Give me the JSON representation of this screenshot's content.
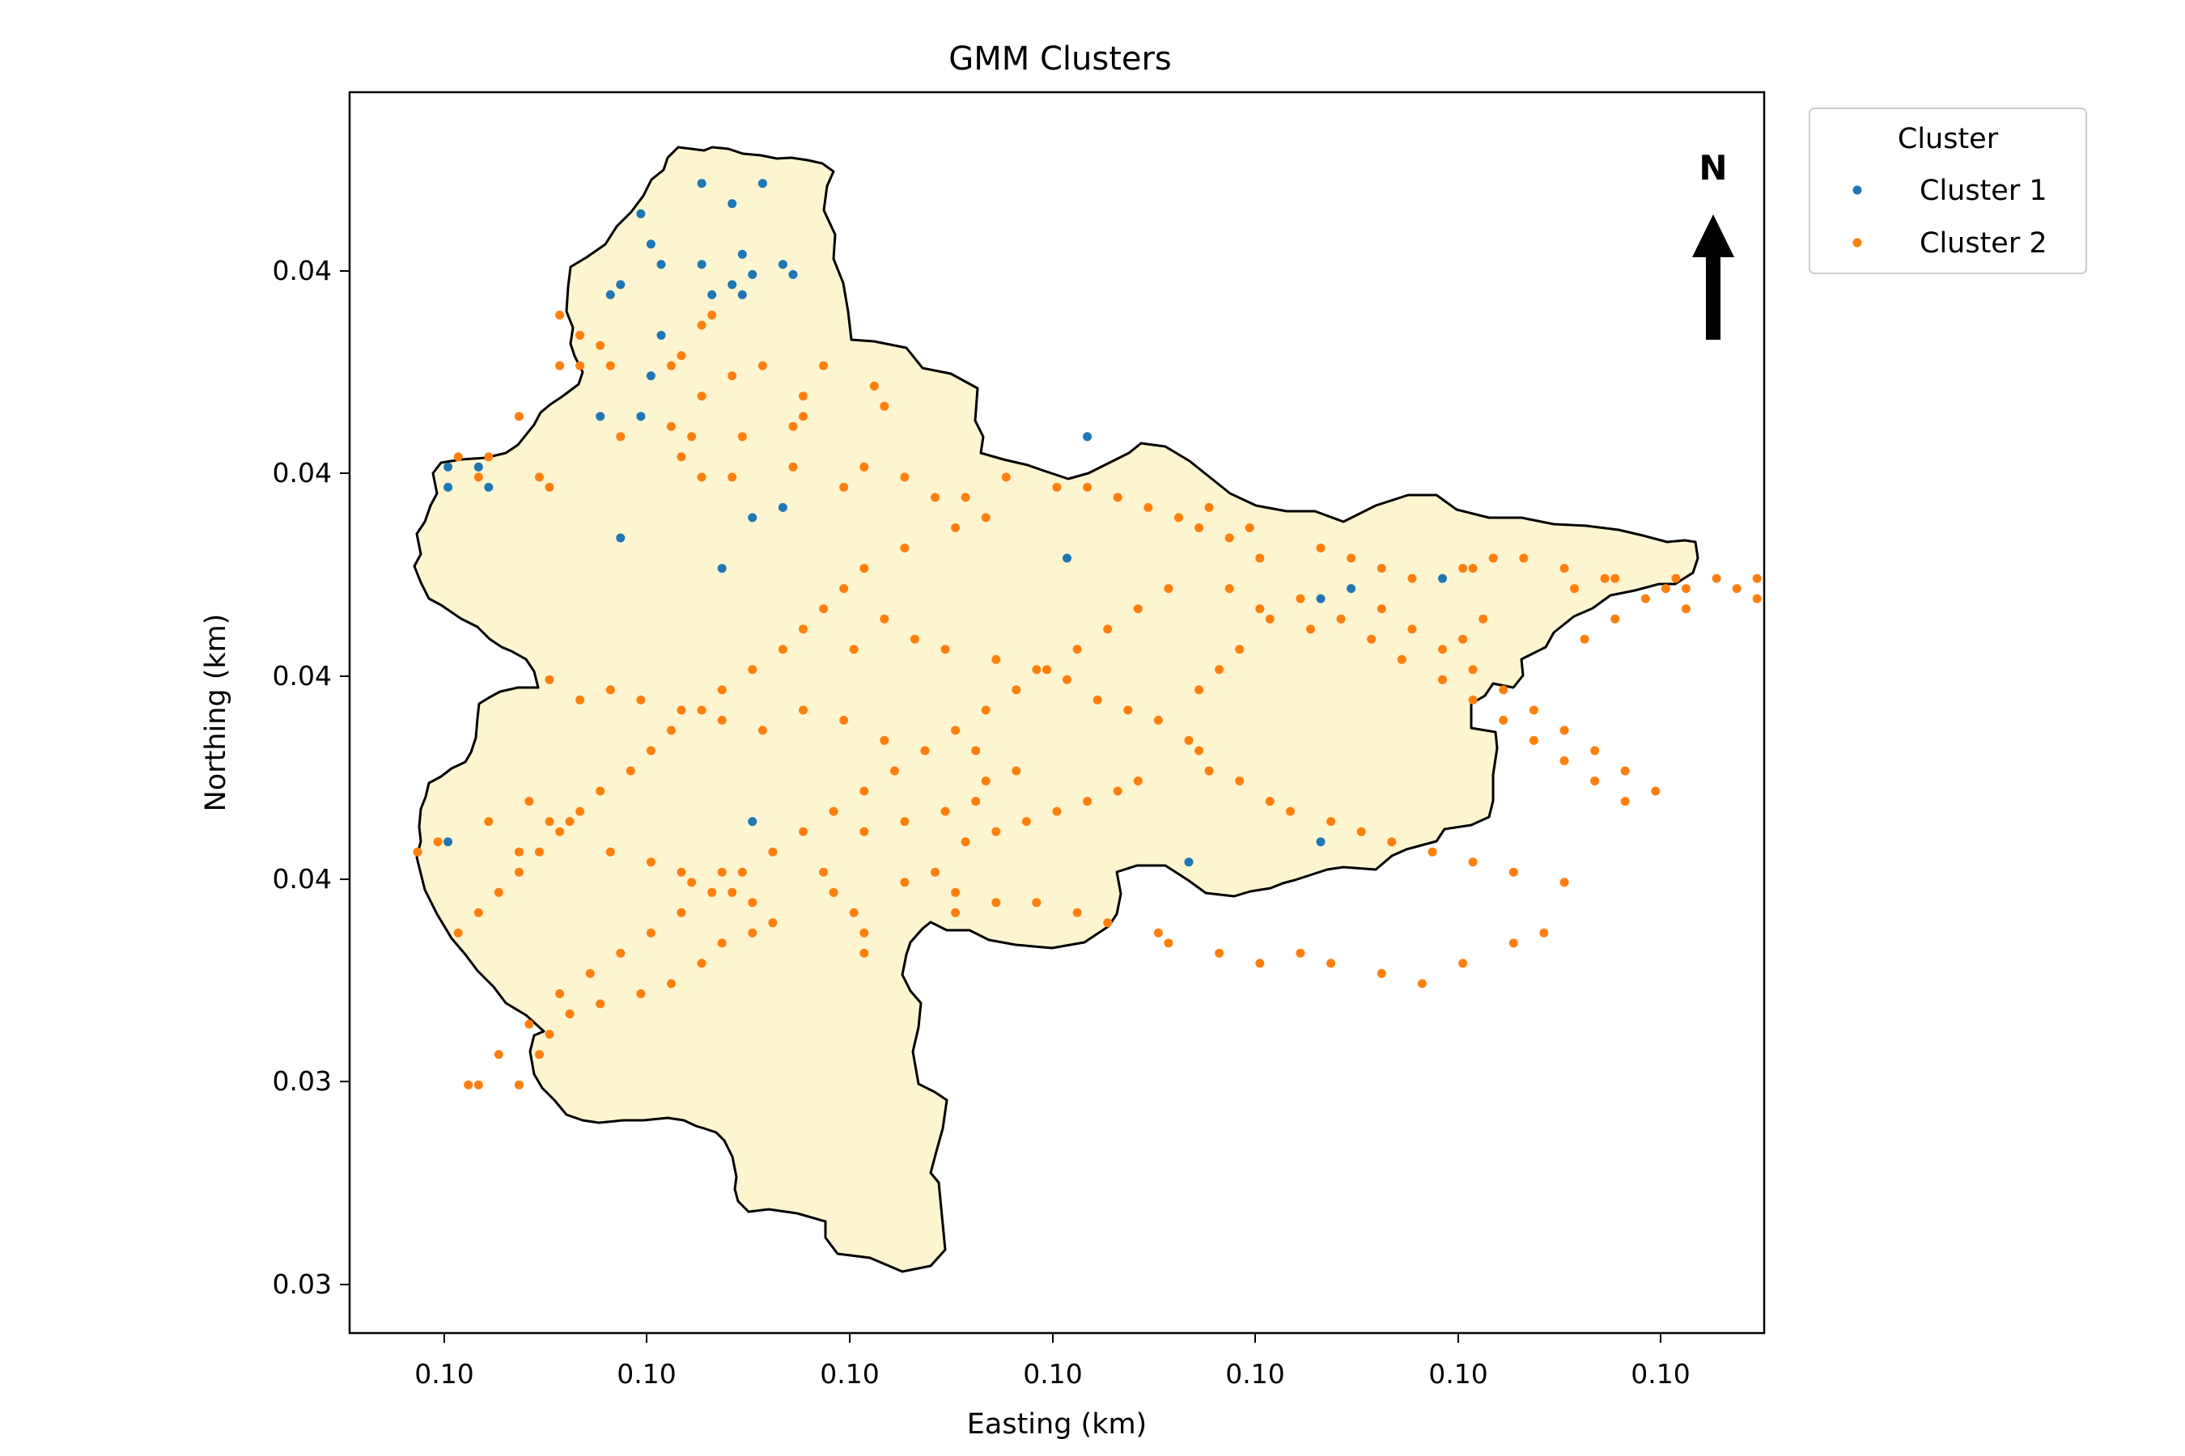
{
  "chart_data": {
    "type": "scatter",
    "title": "GMM Clusters",
    "xlabel": "Easting (km)",
    "ylabel": "Northing (km)",
    "x_tick_labels": [
      "0.10",
      "0.10",
      "0.10",
      "0.10",
      "0.10",
      "0.10",
      "0.10"
    ],
    "y_tick_labels": [
      "0.04",
      "0.04",
      "0.04",
      "0.04",
      "0.03",
      "0.03"
    ],
    "xlim": [
      -0.47,
      13.47
    ],
    "ylim": [
      -0.45,
      11.8
    ],
    "north_arrow_label": "N",
    "legend": {
      "title": "Cluster",
      "position": "outside-top-right"
    },
    "basin_fill": "#fdf5d0",
    "series": [
      {
        "name": "Cluster 1",
        "color": "#1f77b4",
        "points": [
          [
            2.4,
            10.6
          ],
          [
            3.0,
            10.9
          ],
          [
            3.3,
            10.7
          ],
          [
            3.6,
            10.9
          ],
          [
            2.5,
            10.3
          ],
          [
            2.6,
            10.1
          ],
          [
            3.0,
            10.1
          ],
          [
            3.4,
            10.2
          ],
          [
            3.8,
            10.1
          ],
          [
            3.5,
            10.0
          ],
          [
            3.9,
            10.0
          ],
          [
            2.2,
            9.9
          ],
          [
            2.1,
            9.8
          ],
          [
            3.1,
            9.8
          ],
          [
            3.4,
            9.8
          ],
          [
            2.6,
            9.4
          ],
          [
            3.3,
            9.9
          ],
          [
            2.5,
            9.0
          ],
          [
            2.4,
            8.6
          ],
          [
            2.0,
            8.6
          ],
          [
            0.5,
            8.1
          ],
          [
            0.8,
            8.1
          ],
          [
            0.5,
            7.9
          ],
          [
            0.9,
            7.9
          ],
          [
            3.5,
            7.6
          ],
          [
            3.8,
            7.7
          ],
          [
            2.2,
            7.4
          ],
          [
            3.2,
            7.1
          ],
          [
            6.6,
            7.2
          ],
          [
            6.8,
            8.4
          ],
          [
            10.3,
            7.0
          ],
          [
            9.4,
            6.9
          ],
          [
            9.1,
            6.8
          ],
          [
            3.5,
            4.6
          ],
          [
            9.1,
            4.4
          ],
          [
            7.8,
            4.2
          ],
          [
            0.5,
            4.4
          ]
        ]
      },
      {
        "name": "Cluster 2",
        "color": "#ff7f0e",
        "points": [
          [
            1.6,
            9.6
          ],
          [
            1.8,
            9.4
          ],
          [
            2.0,
            9.3
          ],
          [
            3.1,
            9.6
          ],
          [
            3.0,
            9.5
          ],
          [
            2.8,
            9.2
          ],
          [
            1.6,
            9.1
          ],
          [
            1.8,
            9.1
          ],
          [
            2.1,
            9.1
          ],
          [
            2.7,
            9.1
          ],
          [
            3.3,
            9.0
          ],
          [
            3.6,
            9.1
          ],
          [
            3.0,
            8.8
          ],
          [
            4.2,
            9.1
          ],
          [
            4.7,
            8.9
          ],
          [
            4.8,
            8.7
          ],
          [
            4.0,
            8.8
          ],
          [
            4.0,
            8.6
          ],
          [
            3.9,
            8.5
          ],
          [
            3.4,
            8.4
          ],
          [
            2.7,
            8.5
          ],
          [
            2.9,
            8.4
          ],
          [
            2.2,
            8.4
          ],
          [
            1.2,
            8.6
          ],
          [
            0.9,
            8.2
          ],
          [
            0.6,
            8.2
          ],
          [
            0.8,
            8.0
          ],
          [
            1.4,
            8.0
          ],
          [
            1.5,
            7.9
          ],
          [
            2.8,
            8.2
          ],
          [
            3.0,
            8.0
          ],
          [
            3.3,
            8.0
          ],
          [
            3.9,
            8.1
          ],
          [
            4.4,
            7.9
          ],
          [
            4.6,
            8.1
          ],
          [
            5.0,
            8.0
          ],
          [
            5.3,
            7.8
          ],
          [
            5.6,
            7.8
          ],
          [
            6.0,
            8.0
          ],
          [
            6.5,
            7.9
          ],
          [
            6.8,
            7.9
          ],
          [
            7.1,
            7.8
          ],
          [
            7.4,
            7.7
          ],
          [
            7.7,
            7.6
          ],
          [
            7.9,
            7.5
          ],
          [
            8.2,
            7.4
          ],
          [
            8.5,
            7.2
          ],
          [
            9.1,
            7.3
          ],
          [
            9.4,
            7.2
          ],
          [
            9.7,
            7.1
          ],
          [
            10.0,
            7.0
          ],
          [
            10.5,
            7.1
          ],
          [
            10.8,
            7.2
          ],
          [
            11.1,
            7.2
          ],
          [
            11.5,
            7.1
          ],
          [
            11.9,
            7.0
          ],
          [
            11.6,
            6.9
          ],
          [
            12.0,
            7.0
          ],
          [
            12.5,
            6.9
          ],
          [
            12.7,
            6.9
          ],
          [
            12.7,
            6.7
          ],
          [
            5.8,
            7.6
          ],
          [
            5.5,
            7.5
          ],
          [
            5.0,
            7.3
          ],
          [
            4.6,
            7.1
          ],
          [
            4.4,
            6.9
          ],
          [
            4.2,
            6.7
          ],
          [
            4.0,
            6.5
          ],
          [
            3.8,
            6.3
          ],
          [
            3.5,
            6.1
          ],
          [
            3.2,
            5.9
          ],
          [
            3.0,
            5.7
          ],
          [
            2.7,
            5.5
          ],
          [
            2.5,
            5.3
          ],
          [
            2.3,
            5.1
          ],
          [
            2.0,
            4.9
          ],
          [
            1.8,
            4.7
          ],
          [
            1.6,
            4.5
          ],
          [
            1.4,
            4.3
          ],
          [
            1.2,
            4.1
          ],
          [
            1.0,
            3.9
          ],
          [
            0.8,
            3.7
          ],
          [
            0.6,
            3.5
          ],
          [
            1.7,
            4.6
          ],
          [
            1.2,
            4.3
          ],
          [
            0.4,
            4.4
          ],
          [
            0.2,
            4.3
          ],
          [
            0.9,
            4.6
          ],
          [
            1.3,
            4.8
          ],
          [
            1.5,
            4.6
          ],
          [
            2.1,
            4.3
          ],
          [
            2.5,
            4.2
          ],
          [
            2.8,
            4.1
          ],
          [
            2.9,
            4.0
          ],
          [
            3.2,
            4.1
          ],
          [
            3.3,
            3.9
          ],
          [
            3.5,
            3.8
          ],
          [
            3.7,
            3.6
          ],
          [
            3.5,
            3.5
          ],
          [
            3.2,
            3.4
          ],
          [
            3.0,
            3.2
          ],
          [
            2.7,
            3.0
          ],
          [
            2.4,
            2.9
          ],
          [
            2.0,
            2.8
          ],
          [
            1.7,
            2.7
          ],
          [
            1.5,
            2.5
          ],
          [
            1.4,
            2.3
          ],
          [
            1.2,
            2.0
          ],
          [
            0.8,
            2.0
          ],
          [
            4.2,
            4.1
          ],
          [
            4.3,
            3.9
          ],
          [
            4.5,
            3.7
          ],
          [
            4.6,
            3.5
          ],
          [
            4.6,
            3.3
          ],
          [
            5.0,
            4.0
          ],
          [
            5.3,
            4.1
          ],
          [
            5.5,
            3.9
          ],
          [
            5.5,
            3.7
          ],
          [
            5.9,
            3.8
          ],
          [
            6.3,
            3.8
          ],
          [
            6.7,
            3.7
          ],
          [
            7.0,
            3.6
          ],
          [
            7.5,
            3.5
          ],
          [
            7.6,
            3.4
          ],
          [
            8.1,
            3.3
          ],
          [
            8.5,
            3.2
          ],
          [
            8.9,
            3.3
          ],
          [
            9.2,
            3.2
          ],
          [
            9.7,
            3.1
          ],
          [
            10.1,
            3.0
          ],
          [
            10.5,
            3.2
          ],
          [
            11.0,
            3.4
          ],
          [
            11.3,
            3.5
          ],
          [
            4.6,
            4.5
          ],
          [
            5.0,
            4.6
          ],
          [
            5.4,
            4.7
          ],
          [
            5.7,
            4.8
          ],
          [
            5.8,
            5.0
          ],
          [
            6.1,
            5.1
          ],
          [
            5.7,
            5.3
          ],
          [
            5.2,
            5.3
          ],
          [
            4.8,
            5.4
          ],
          [
            4.4,
            5.6
          ],
          [
            4.0,
            5.7
          ],
          [
            3.6,
            5.5
          ],
          [
            3.2,
            5.6
          ],
          [
            2.8,
            5.7
          ],
          [
            2.4,
            5.8
          ],
          [
            2.1,
            5.9
          ],
          [
            1.8,
            5.8
          ],
          [
            1.5,
            6.0
          ],
          [
            4.5,
            6.3
          ],
          [
            4.8,
            6.6
          ],
          [
            5.1,
            6.4
          ],
          [
            5.4,
            6.3
          ],
          [
            5.9,
            6.2
          ],
          [
            6.3,
            6.1
          ],
          [
            6.6,
            6.0
          ],
          [
            6.9,
            5.8
          ],
          [
            7.2,
            5.7
          ],
          [
            7.5,
            5.6
          ],
          [
            7.8,
            5.4
          ],
          [
            7.9,
            5.3
          ],
          [
            8.0,
            5.1
          ],
          [
            8.3,
            5.0
          ],
          [
            8.6,
            4.8
          ],
          [
            8.8,
            4.7
          ],
          [
            9.2,
            4.6
          ],
          [
            9.5,
            4.5
          ],
          [
            9.8,
            4.4
          ],
          [
            10.2,
            4.3
          ],
          [
            10.6,
            4.2
          ],
          [
            11.0,
            4.1
          ],
          [
            11.5,
            4.0
          ],
          [
            7.3,
            5.0
          ],
          [
            7.1,
            4.9
          ],
          [
            6.8,
            4.8
          ],
          [
            6.5,
            4.7
          ],
          [
            6.2,
            4.6
          ],
          [
            5.9,
            4.5
          ],
          [
            5.6,
            4.4
          ],
          [
            7.9,
            5.9
          ],
          [
            8.1,
            6.1
          ],
          [
            8.3,
            6.3
          ],
          [
            8.6,
            6.6
          ],
          [
            8.9,
            6.8
          ],
          [
            9.3,
            6.6
          ],
          [
            9.6,
            6.4
          ],
          [
            9.9,
            6.2
          ],
          [
            10.3,
            6.0
          ],
          [
            10.6,
            5.8
          ],
          [
            10.9,
            5.6
          ],
          [
            11.2,
            5.4
          ],
          [
            11.5,
            5.2
          ],
          [
            11.8,
            5.0
          ],
          [
            12.1,
            4.8
          ],
          [
            7.6,
            6.9
          ],
          [
            7.3,
            6.7
          ],
          [
            7.0,
            6.5
          ],
          [
            6.7,
            6.3
          ],
          [
            6.4,
            6.1
          ],
          [
            6.1,
            5.9
          ],
          [
            5.8,
            5.7
          ],
          [
            5.5,
            5.5
          ],
          [
            5.2,
            5.3
          ],
          [
            4.9,
            5.1
          ],
          [
            4.6,
            4.9
          ],
          [
            4.3,
            4.7
          ],
          [
            4.0,
            4.5
          ],
          [
            3.7,
            4.3
          ],
          [
            3.4,
            4.1
          ],
          [
            3.1,
            3.9
          ],
          [
            2.8,
            3.7
          ],
          [
            2.5,
            3.5
          ],
          [
            2.2,
            3.3
          ],
          [
            1.9,
            3.1
          ],
          [
            1.6,
            2.9
          ],
          [
            1.3,
            2.6
          ],
          [
            1.0,
            2.3
          ],
          [
            0.7,
            2.0
          ],
          [
            9.7,
            6.7
          ],
          [
            10.0,
            6.5
          ],
          [
            10.3,
            6.3
          ],
          [
            10.6,
            6.1
          ],
          [
            10.9,
            5.9
          ],
          [
            11.2,
            5.7
          ],
          [
            11.5,
            5.5
          ],
          [
            11.8,
            5.3
          ],
          [
            12.1,
            5.1
          ],
          [
            12.4,
            4.9
          ],
          [
            8.0,
            7.7
          ],
          [
            8.4,
            7.5
          ],
          [
            8.2,
            6.9
          ],
          [
            8.5,
            6.7
          ],
          [
            9.0,
            6.5
          ],
          [
            11.7,
            6.4
          ],
          [
            12.0,
            6.6
          ],
          [
            12.3,
            6.8
          ],
          [
            12.6,
            7.0
          ],
          [
            13.0,
            7.0
          ],
          [
            13.2,
            6.9
          ],
          [
            13.4,
            7.0
          ],
          [
            13.4,
            6.8
          ],
          [
            10.6,
            7.1
          ],
          [
            10.7,
            6.6
          ],
          [
            10.5,
            6.4
          ]
        ]
      }
    ]
  }
}
